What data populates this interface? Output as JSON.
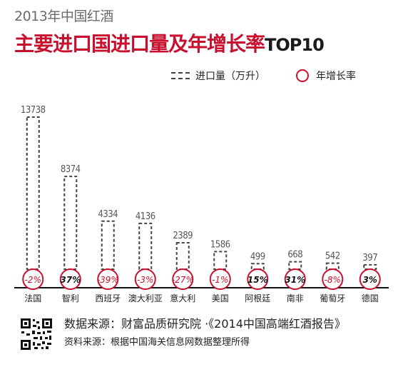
{
  "header": {
    "supertitle": "2013年中国红酒",
    "title_main": "主要进口国进口量及年增长率",
    "title_suffix": "TOP10"
  },
  "legend": {
    "bar_label": "进口量（万升）",
    "circle_label": "年增长率"
  },
  "colors": {
    "accent": "#c8102e",
    "bar_stroke": "#444444",
    "text": "#222222"
  },
  "chart_data": {
    "type": "bar",
    "categories": [
      "法国",
      "智利",
      "西班牙",
      "澳大利亚",
      "意大利",
      "美国",
      "阿根廷",
      "南非",
      "葡萄牙",
      "德国"
    ],
    "series": [
      {
        "name": "进口量（万升）",
        "values": [
          13738,
          8374,
          4334,
          4136,
          2389,
          1586,
          499,
          668,
          542,
          397
        ]
      },
      {
        "name": "年增长率",
        "values": [
          "-2%",
          "37%",
          "-39%",
          "-3%",
          "-27%",
          "-1%",
          "15%",
          "31%",
          "-8%",
          "3%"
        ]
      }
    ],
    "bar_value_labels": [
      "13738",
      "8374",
      "4334",
      "4136",
      "2389",
      "1586",
      "499",
      "668",
      "542",
      "397"
    ]
  },
  "footer": {
    "source_line1": "数据来源：财富品质研究院 ·《2014中国高端红酒报告》",
    "source_line2": "资料来源：根据中国海关信息网数据整理所得"
  }
}
